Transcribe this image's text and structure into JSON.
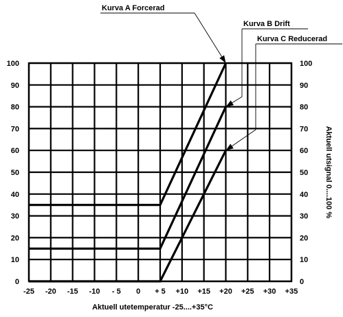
{
  "chart_data": {
    "type": "line",
    "xlabel": "Aktuell utetemperatur -25....+35°C",
    "ylabel": "Aktuell utsignal 0....100 %",
    "xlim": [
      -25,
      35
    ],
    "ylim": [
      0,
      100
    ],
    "x_ticks": [
      "-25",
      "-20",
      "-15",
      "-10",
      "- 5",
      "0",
      "+ 5",
      "+10",
      "+15",
      "+20",
      "+25",
      "+30",
      "+35"
    ],
    "y_ticks": [
      "0",
      "10",
      "20",
      "30",
      "40",
      "50",
      "60",
      "70",
      "80",
      "90",
      "100"
    ],
    "y_ticks_right": [
      "0",
      "10",
      "20",
      "30",
      "40",
      "50",
      "60",
      "70",
      "80",
      "90",
      "100"
    ],
    "grid": true,
    "series": [
      {
        "name": "Kurva A Forcerad",
        "x": [
          -25,
          5,
          20
        ],
        "y": [
          35,
          35,
          100
        ]
      },
      {
        "name": "Kurva B Drift",
        "x": [
          -25,
          5,
          20
        ],
        "y": [
          15,
          15,
          80
        ]
      },
      {
        "name": "Kurva C Reducerad",
        "x": [
          -25,
          5,
          20
        ],
        "y": [
          0,
          0,
          60
        ]
      }
    ],
    "callouts": [
      {
        "series": 0,
        "label": "Kurva A Forcerad",
        "points_to": [
          20,
          100
        ]
      },
      {
        "series": 1,
        "label": "Kurva B Drift",
        "points_to": [
          20,
          80
        ]
      },
      {
        "series": 2,
        "label": "Kurva C Reducerad",
        "points_to": [
          20,
          60
        ]
      }
    ]
  }
}
